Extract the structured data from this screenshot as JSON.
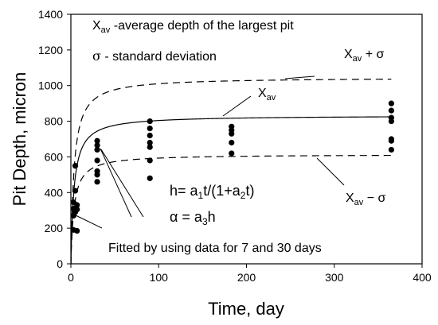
{
  "chart_data": {
    "type": "scatter",
    "xlabel": "Time, day",
    "ylabel": "Pit Depth, micron",
    "xlim": [
      0,
      400
    ],
    "ylim": [
      0,
      1400
    ],
    "xticks": [
      "0",
      "100",
      "200",
      "300",
      "400"
    ],
    "yticks": [
      "0",
      "200",
      "400",
      "600",
      "800",
      "1000",
      "1200",
      "1400"
    ],
    "grid": false,
    "points": {
      "x": [
        3,
        3,
        3,
        3,
        5,
        5,
        5,
        7,
        7,
        7,
        30,
        30,
        30,
        30,
        30,
        30,
        30,
        90,
        90,
        90,
        90,
        90,
        90,
        90,
        183,
        183,
        183,
        183,
        183,
        365,
        365,
        365,
        365,
        365,
        365,
        365
      ],
      "y": [
        190,
        270,
        310,
        345,
        410,
        550,
        290,
        330,
        185,
        305,
        460,
        500,
        520,
        580,
        640,
        665,
        690,
        480,
        580,
        655,
        680,
        720,
        760,
        800,
        620,
        680,
        730,
        750,
        770,
        640,
        690,
        700,
        800,
        820,
        860,
        900
      ]
    },
    "curves": [
      {
        "style": "solid",
        "a1": 233.2,
        "a2": 0.28
      },
      {
        "style": "dashed",
        "a1": 293,
        "a2": 0.28
      },
      {
        "style": "dashed",
        "a1": 172,
        "a2": 0.28
      }
    ],
    "annotations": {
      "xav_def_prefix": "X",
      "xav_def_sub": "av",
      "xav_def_rest": " -average depth of the largest pit",
      "sigma_def_symbol": "σ",
      "sigma_def_rest": "  - standard deviation",
      "upper_x": "X",
      "upper_sub": "av",
      "upper_rest": " + σ",
      "mid_x": "X",
      "mid_sub": "av",
      "lower_x": "X",
      "lower_sub": "av",
      "lower_rest": " − σ",
      "formula1_a": "h= a",
      "formula1_s1": "1",
      "formula1_b": "t/(1+a",
      "formula1_s2": "2",
      "formula1_c": "t)",
      "formula2_a": "α = a",
      "formula2_s": "3",
      "formula2_b": "h",
      "fitted_note": "Fitted by using data for 7 and 30 days"
    }
  }
}
